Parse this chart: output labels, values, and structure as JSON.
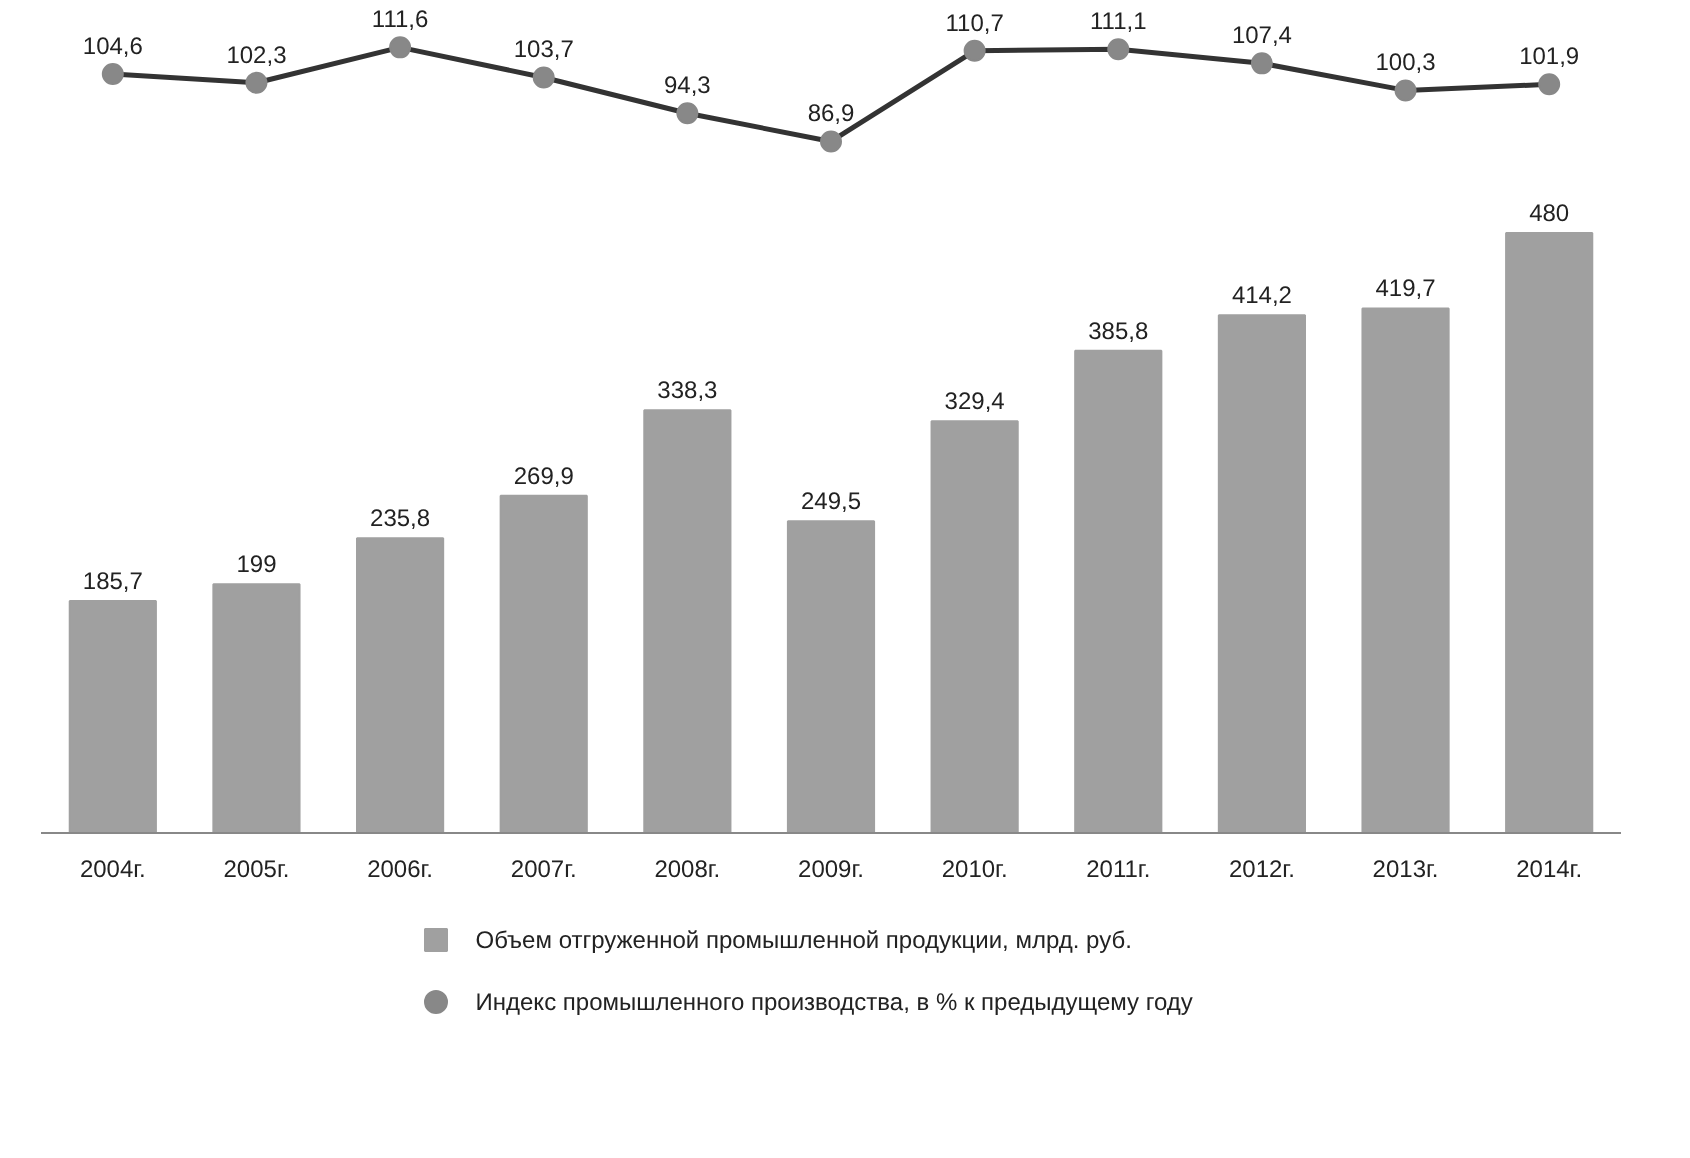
{
  "chart_data": [
    {
      "type": "line",
      "categories": [
        null,
        null,
        null,
        null,
        null,
        null,
        null,
        null,
        null,
        null,
        null
      ],
      "tick_labels": false,
      "marker": "circle",
      "legend": "bottom",
      "series": [
        {
          "name": "Индекс промышленного производства, в % к предыдущему году",
          "color": "#333333",
          "values": [
            104.6,
            102.3,
            111.6,
            103.7,
            94.3,
            86.9,
            110.7,
            111.1,
            107.4,
            100.3,
            101.9
          ],
          "value_labels": [
            "104,6",
            "102,3",
            "111,6",
            "103,7",
            "94,3",
            "86,9",
            "110,7",
            "111,1",
            "107,4",
            "100,3",
            "101,9"
          ]
        }
      ]
    },
    {
      "type": "bar",
      "categories": [
        "2004г.",
        "2005г.",
        "2006г.",
        "2007г.",
        "2008г.",
        "2009г.",
        "2010г.",
        "2011г.",
        "2012г.",
        "2013г.",
        "2014г."
      ],
      "tick_labels": "x",
      "legend": "bottom",
      "series": [
        {
          "name": "Объем отгруженной промышленной продукции, млрд. руб.",
          "color": "#a0a0a0",
          "values": [
            185.7,
            199,
            235.8,
            269.9,
            338.3,
            249.5,
            329.4,
            385.8,
            414.2,
            419.7,
            480
          ],
          "value_labels": [
            "185,7",
            "199",
            "235,8",
            "269,9",
            "338,3",
            "249,5",
            "329,4",
            "385,8",
            "414,2",
            "419,7",
            "480"
          ]
        }
      ]
    }
  ]
}
